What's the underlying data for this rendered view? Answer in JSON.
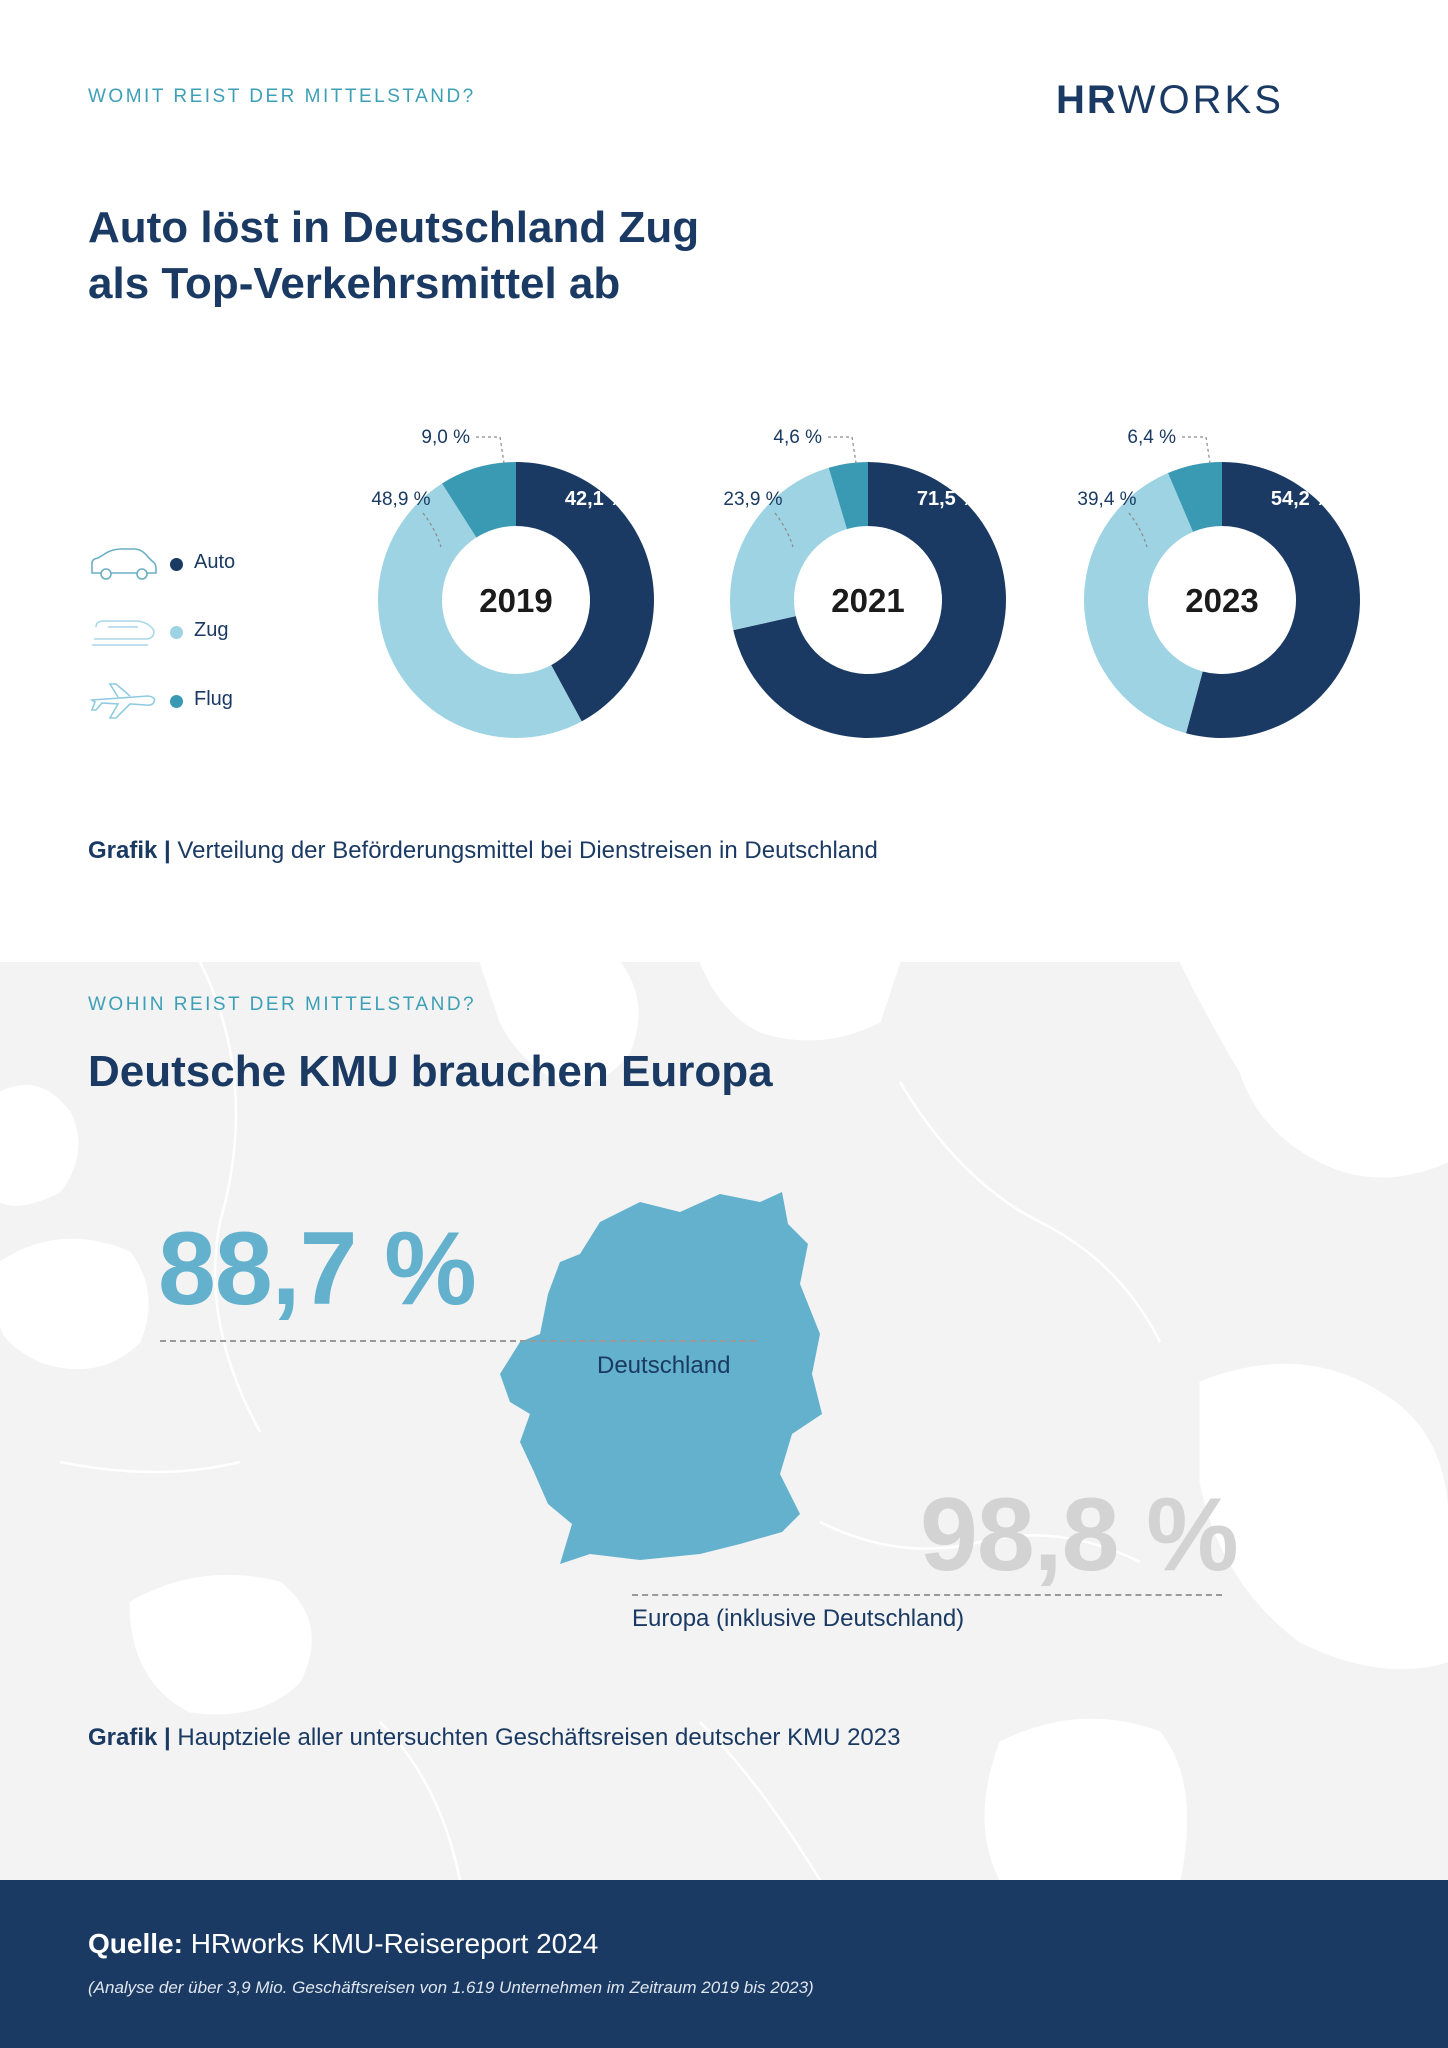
{
  "kicker1": "WOMIT REIST DER MITTELSTAND?",
  "logo": {
    "part1": "HR",
    "part2": "WORKS"
  },
  "headline1_line1": "Auto löst in Deutschland Zug",
  "headline1_line2": "als Top-Verkehrsmittel ab",
  "legend": [
    {
      "label": "Auto",
      "color": "#1b3a63",
      "icon": "car-icon"
    },
    {
      "label": "Zug",
      "color": "#9dd3e3",
      "icon": "train-icon"
    },
    {
      "label": "Flug",
      "color": "#3b9ab3",
      "icon": "airplane-icon"
    }
  ],
  "chart_data": {
    "type": "pie",
    "variant": "donut",
    "categories": [
      "Auto",
      "Zug",
      "Flug"
    ],
    "colors": [
      "#1b3a63",
      "#9dd3e3",
      "#3b9ab3"
    ],
    "charts": [
      {
        "year": "2019",
        "values": [
          42.1,
          48.9,
          9.0
        ],
        "labels": [
          "42,1 %",
          "48,9 %",
          "9,0 %"
        ]
      },
      {
        "year": "2021",
        "values": [
          71.5,
          23.9,
          4.6
        ],
        "labels": [
          "71,5 %",
          "23,9 %",
          "4,6 %"
        ]
      },
      {
        "year": "2023",
        "values": [
          54.2,
          39.4,
          6.4
        ],
        "labels": [
          "54,2 %",
          "39,4 %",
          "6,4 %"
        ]
      }
    ]
  },
  "caption1": {
    "lead": "Grafik |",
    "text": " Verteilung der Beförderungsmittel bei Dienstreisen in Deutschland"
  },
  "kicker2": "WOHIN REIST DER MITTELSTAND?",
  "headline2": "Deutsche KMU brauchen Europa",
  "map": {
    "germany": {
      "value": "88,7 %",
      "label": "Deutschland",
      "color": "#63b1cd"
    },
    "europe": {
      "value": "98,8 %",
      "label": "Europa (inklusive Deutschland)",
      "color": "#d3d3d3"
    }
  },
  "caption2": {
    "lead": "Grafik |",
    "text": " Hauptziele aller untersuchten Geschäftsreisen deutscher KMU 2023"
  },
  "footer": {
    "lead": "Quelle:",
    "text": " HRworks KMU-Reisereport 2024",
    "note": "(Analyse der über 3,9 Mio. Geschäftsreisen von 1.619 Unternehmen im Zeitraum 2019 bis 2023)"
  }
}
